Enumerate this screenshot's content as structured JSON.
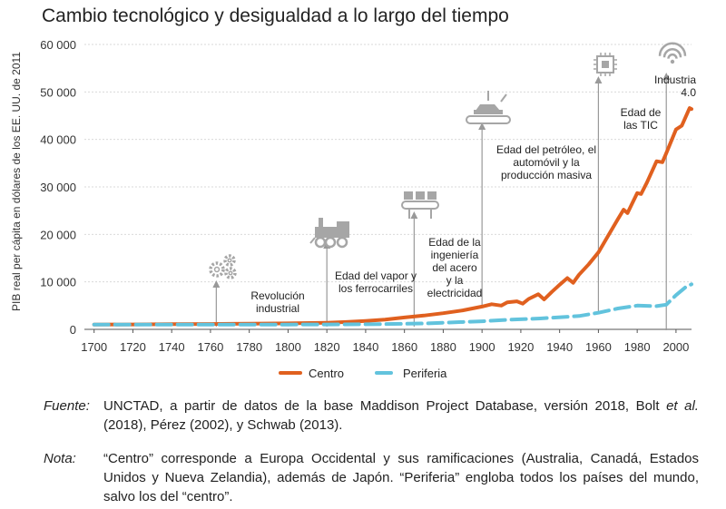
{
  "chart_data": {
    "type": "line",
    "title": "Cambio tecnológico y desigualdad a lo largo del tiempo",
    "ylabel": "PIB real per cápita en dólares de los EE. UU. de 2011",
    "xlabel": "",
    "xlim": [
      1695,
      2008
    ],
    "ylim": [
      0,
      60000
    ],
    "x_ticks": [
      "1700",
      "1720",
      "1740",
      "1760",
      "1780",
      "1800",
      "1820",
      "1840",
      "1860",
      "1880",
      "1900",
      "1920",
      "1940",
      "1960",
      "1980",
      "2000"
    ],
    "y_ticks": [
      "0",
      "10 000",
      "20 000",
      "30 000",
      "40 000",
      "50 000",
      "60 000"
    ],
    "grid": "horizontal",
    "legend_position": "bottom-center",
    "series": [
      {
        "name": "Centro",
        "color": "#e0601f",
        "style": "solid",
        "points": [
          [
            1700,
            1000
          ],
          [
            1720,
            1040
          ],
          [
            1740,
            1080
          ],
          [
            1760,
            1130
          ],
          [
            1780,
            1200
          ],
          [
            1800,
            1270
          ],
          [
            1820,
            1400
          ],
          [
            1830,
            1550
          ],
          [
            1840,
            1750
          ],
          [
            1850,
            2050
          ],
          [
            1860,
            2500
          ],
          [
            1870,
            2900
          ],
          [
            1880,
            3400
          ],
          [
            1890,
            4000
          ],
          [
            1900,
            4800
          ],
          [
            1905,
            5300
          ],
          [
            1910,
            5000
          ],
          [
            1913,
            5700
          ],
          [
            1918,
            5900
          ],
          [
            1921,
            5400
          ],
          [
            1924,
            6400
          ],
          [
            1929,
            7400
          ],
          [
            1932,
            6300
          ],
          [
            1936,
            7900
          ],
          [
            1940,
            9400
          ],
          [
            1944,
            10800
          ],
          [
            1947,
            9800
          ],
          [
            1950,
            11500
          ],
          [
            1955,
            13700
          ],
          [
            1960,
            16200
          ],
          [
            1965,
            19700
          ],
          [
            1970,
            23200
          ],
          [
            1973,
            25200
          ],
          [
            1975,
            24500
          ],
          [
            1980,
            28700
          ],
          [
            1982,
            28500
          ],
          [
            1985,
            30900
          ],
          [
            1990,
            35400
          ],
          [
            1993,
            35200
          ],
          [
            1995,
            37100
          ],
          [
            2000,
            42100
          ],
          [
            2003,
            42900
          ],
          [
            2007,
            46600
          ],
          [
            2008,
            46400
          ]
        ]
      },
      {
        "name": "Periferia",
        "color": "#62c3dd",
        "style": "dashed",
        "points": [
          [
            1700,
            1000
          ],
          [
            1750,
            1000
          ],
          [
            1800,
            1020
          ],
          [
            1820,
            1030
          ],
          [
            1850,
            1100
          ],
          [
            1870,
            1250
          ],
          [
            1900,
            1700
          ],
          [
            1913,
            2000
          ],
          [
            1930,
            2300
          ],
          [
            1950,
            2800
          ],
          [
            1960,
            3500
          ],
          [
            1970,
            4400
          ],
          [
            1980,
            5000
          ],
          [
            1990,
            4900
          ],
          [
            1995,
            5200
          ],
          [
            2000,
            7200
          ],
          [
            2005,
            8900
          ],
          [
            2008,
            9500
          ]
        ]
      }
    ],
    "annotations": [
      {
        "year": 1763,
        "tip_value": 9500,
        "lines": [
          "Revolución",
          "industrial"
        ],
        "icon": "gears-icon"
      },
      {
        "year": 1820,
        "tip_value": 17800,
        "lines": [
          "Edad del vapor y",
          "los ferrocarriles"
        ],
        "icon": "steam-locomotive-icon"
      },
      {
        "year": 1865,
        "tip_value": 25900,
        "lines": [
          "Edad de la",
          "ingeniería",
          "del acero",
          "y la",
          "electricidad"
        ],
        "icon": "conveyor-factory-icon"
      },
      {
        "year": 1900,
        "tip_value": 41300,
        "lines": [
          "Edad del petróleo, el",
          "automóvil y la",
          "producción masiva"
        ],
        "icon": "car-assembly-icon"
      },
      {
        "year": 1960,
        "tip_value": 52500,
        "lines": [
          "Edad de",
          "las TIC"
        ],
        "icon": "microchip-icon"
      },
      {
        "year": 1995,
        "tip_value": 52500,
        "lines": [
          "Industria",
          "4.0"
        ],
        "icon": "wifi-icon"
      }
    ]
  },
  "notes": {
    "fuente_label": "Fuente:",
    "fuente_before": "UNCTAD, a partir de datos de la base Maddison Project Database, versión 2018, Bolt ",
    "fuente_italic": "et al.",
    "fuente_after": " (2018), Pérez (2002), y Schwab (2013).",
    "nota_label": "Nota:",
    "nota_text": "“Centro” corresponde a Europa Occidental y sus ramificaciones (Australia, Canadá, Estados Unidos y Nueva Zelandia), además de Japón. “Periferia” engloba todos los países del mundo, salvo los del “centro”."
  },
  "colors": {
    "axis": "#555555",
    "arrow": "#999999",
    "icon": "#a6a6a6",
    "grid": "#d9d9d9"
  }
}
